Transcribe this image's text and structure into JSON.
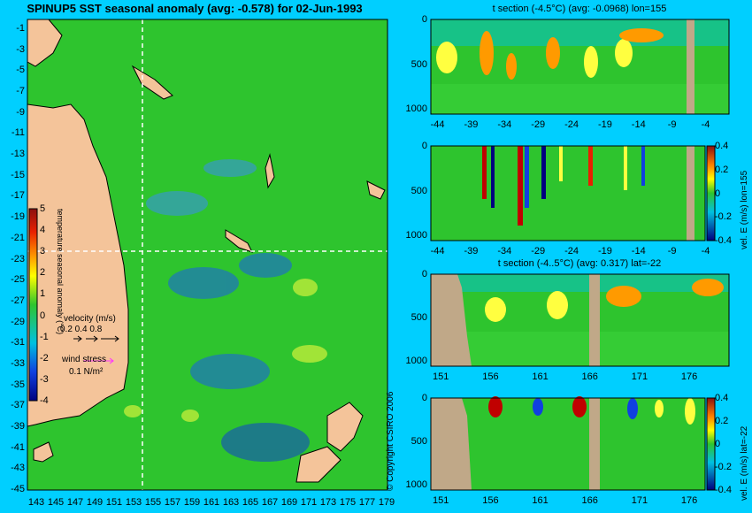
{
  "main": {
    "title": "SPINUP5 SST seasonal anomaly (avg: -0.578) for 02-Jun-1993",
    "y_ticks": [
      "-1",
      "-3",
      "-5",
      "-7",
      "-9",
      "-11",
      "-13",
      "-15",
      "-17",
      "-19",
      "-21",
      "-23",
      "-25",
      "-27",
      "-29",
      "-31",
      "-33",
      "-35",
      "-37",
      "-39",
      "-41",
      "-43",
      "-45"
    ],
    "x_ticks": [
      "143",
      "145",
      "147",
      "149",
      "151",
      "153",
      "155",
      "157",
      "159",
      "161",
      "163",
      "165",
      "167",
      "169",
      "171",
      "173",
      "175",
      "177",
      "179"
    ],
    "colorbar_label": "temperature seasonal anomaly (°C)",
    "colorbar_ticks": [
      "5",
      "4",
      "3",
      "2",
      "1",
      "0",
      "-1",
      "-2",
      "-3",
      "-4"
    ],
    "velocity_title": "velocity (m/s)",
    "velocity_scale": "0.2 0.4 0.8",
    "wind_title": "wind stress",
    "wind_scale": "0.1 N/m²",
    "crosshair": {
      "lon": 155,
      "lat": -22
    }
  },
  "panels": [
    {
      "title": "t section (-4.5°C) (avg: -0.0968) lon=155",
      "x_ticks": [
        "-44",
        "-39",
        "-34",
        "-29",
        "-24",
        "-19",
        "-14",
        "-9",
        "-4"
      ],
      "y_ticks": [
        "0",
        "500",
        "1000"
      ]
    },
    {
      "title": "",
      "x_ticks": [
        "-44",
        "-39",
        "-34",
        "-29",
        "-24",
        "-19",
        "-14",
        "-9",
        "-4"
      ],
      "y_ticks": [
        "0",
        "500",
        "1000"
      ],
      "colorbar_label": "vel. E (m/s) lon=155",
      "colorbar_ticks": [
        "0.4",
        "0.2",
        "0",
        "-0.2",
        "-0.4"
      ]
    },
    {
      "title": "t section (-4..5°C) (avg: 0.317) lat=-22",
      "x_ticks": [
        "151",
        "156",
        "161",
        "166",
        "171",
        "176"
      ],
      "y_ticks": [
        "0",
        "500",
        "1000"
      ]
    },
    {
      "title": "",
      "x_ticks": [
        "151",
        "156",
        "161",
        "166",
        "171",
        "176"
      ],
      "y_ticks": [
        "0",
        "500",
        "1000"
      ],
      "colorbar_label": "vel. E (m/s) lat=-22",
      "colorbar_ticks": [
        "0.4",
        "0.2",
        "0",
        "-0.2",
        "-0.4"
      ]
    }
  ],
  "copyright": "© Copyright CSIRO 2006",
  "chart_data": {
    "type": "heatmap",
    "title": "SPINUP5 SST seasonal anomaly (avg: -0.578) for 02-Jun-1993",
    "x_range": [
      143,
      180
    ],
    "y_range": [
      -45,
      -1
    ],
    "value_range": [
      -4,
      5
    ],
    "section_depth_range": [
      0,
      1000
    ]
  },
  "colors": {
    "background": "#00cfff",
    "land": "#f4c49a",
    "section_land": "#c0a888",
    "ocean": "#2ec42e",
    "crosshair": "#ffffff"
  }
}
